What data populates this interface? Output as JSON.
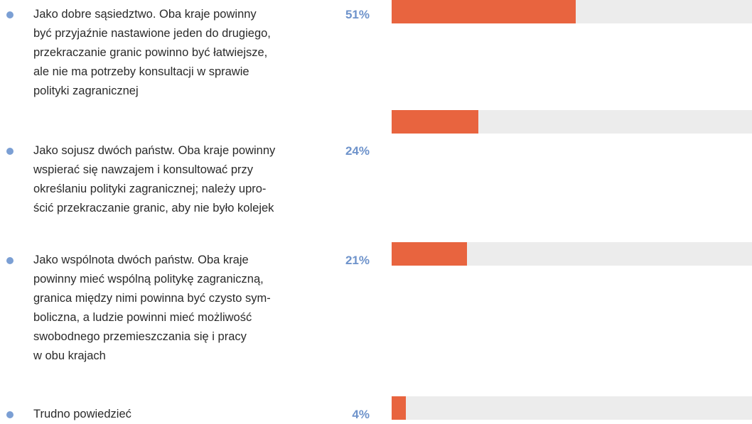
{
  "chart_data": {
    "type": "bar",
    "orientation": "horizontal",
    "categories": [
      "Jako dobre sąsiedztwo. Oba kraje powinny\nbyć przyjaźnie nastawione jeden do drugiego,\nprzekraczanie granic powinno być łatwiejsze,\nale nie ma potrzeby konsultacji w sprawie\npolityki zagranicznej",
      "Jako sojusz dwóch państw. Oba kraje powinny\nwspierać się nawzajem i konsultować przy\nokreślaniu polityki zagranicznej; należy upro-\nścić przekraczanie granic, aby nie było kolejek",
      "Jako wspólnota dwóch państw. Oba kraje\npowinny mieć wspólną politykę zagraniczną,\ngranica między nimi powinna być czysto sym-\nboliczna, a ludzie powinni mieć możliwość\nswobodnego przemieszczania się i pracy\nw obu krajach",
      "Trudno powiedzieć"
    ],
    "values": [
      51,
      24,
      21,
      4
    ],
    "value_labels": [
      "51%",
      "24%",
      "21%",
      "4%"
    ],
    "xlim": [
      0,
      100
    ],
    "color": "#e8643f",
    "track_color": "#ececec"
  }
}
